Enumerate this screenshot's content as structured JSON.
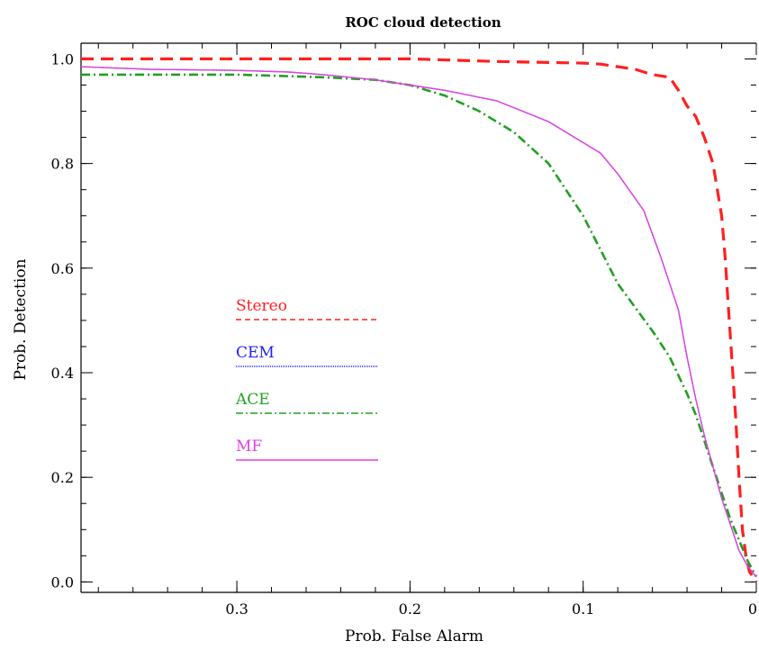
{
  "chart_data": {
    "type": "line",
    "title": "ROC cloud detection",
    "xlabel": "Prob. False Alarm",
    "ylabel": "Prob. Detection",
    "xlim": [
      0.39,
      0.0
    ],
    "ylim": [
      -0.02,
      1.03
    ],
    "x_reversed": true,
    "grid": false,
    "legend_position": "center-left",
    "x_ticks": [
      0.3,
      0.2,
      0.1,
      0.0
    ],
    "x_tick_labels": [
      "0.3",
      "0.2",
      "0.1",
      "0"
    ],
    "y_ticks": [
      0.0,
      0.2,
      0.4,
      0.6,
      0.8,
      1.0
    ],
    "y_tick_labels": [
      "0.0",
      "0.2",
      "0.4",
      "0.6",
      "0.8",
      "1.0"
    ],
    "series": [
      {
        "name": "Stereo",
        "color": "#ff2020",
        "style": "dashed",
        "x": [
          0.39,
          0.3,
          0.2,
          0.15,
          0.1,
          0.09,
          0.07,
          0.06,
          0.05,
          0.045,
          0.04,
          0.035,
          0.03,
          0.025,
          0.02,
          0.018,
          0.016,
          0.014,
          0.012,
          0.01,
          0.008,
          0.006,
          0.004,
          0.002,
          0.0
        ],
        "y": [
          1.0,
          1.0,
          1.0,
          0.995,
          0.992,
          0.99,
          0.98,
          0.97,
          0.965,
          0.94,
          0.91,
          0.89,
          0.85,
          0.8,
          0.7,
          0.62,
          0.52,
          0.42,
          0.32,
          0.2,
          0.1,
          0.05,
          0.02,
          0.01,
          0.0
        ]
      },
      {
        "name": "CEM",
        "color": "#2020ff",
        "style": "dotted",
        "x": [
          0.39,
          0.35,
          0.3,
          0.27,
          0.25,
          0.22,
          0.2,
          0.18,
          0.15,
          0.12,
          0.1,
          0.09,
          0.08,
          0.065,
          0.055,
          0.045,
          0.04,
          0.035,
          0.03,
          0.025,
          0.02,
          0.015,
          0.01,
          0.005,
          0.0
        ],
        "y": [
          0.985,
          0.98,
          0.978,
          0.975,
          0.97,
          0.96,
          0.95,
          0.94,
          0.92,
          0.88,
          0.84,
          0.82,
          0.78,
          0.71,
          0.62,
          0.52,
          0.43,
          0.35,
          0.28,
          0.22,
          0.16,
          0.11,
          0.06,
          0.03,
          0.01
        ]
      },
      {
        "name": "ACE",
        "color": "#20a020",
        "style": "dash-dot",
        "x": [
          0.39,
          0.35,
          0.3,
          0.25,
          0.22,
          0.2,
          0.18,
          0.16,
          0.14,
          0.12,
          0.1,
          0.08,
          0.06,
          0.05,
          0.04,
          0.035,
          0.03,
          0.025,
          0.02,
          0.015,
          0.01,
          0.005,
          0.0
        ],
        "y": [
          0.97,
          0.97,
          0.97,
          0.965,
          0.96,
          0.95,
          0.93,
          0.9,
          0.86,
          0.8,
          0.7,
          0.57,
          0.48,
          0.43,
          0.36,
          0.32,
          0.27,
          0.22,
          0.17,
          0.12,
          0.08,
          0.04,
          0.01
        ]
      },
      {
        "name": "MF",
        "color": "#e040e0",
        "style": "solid",
        "x": [
          0.39,
          0.35,
          0.3,
          0.27,
          0.25,
          0.22,
          0.2,
          0.18,
          0.15,
          0.12,
          0.1,
          0.09,
          0.08,
          0.065,
          0.055,
          0.045,
          0.04,
          0.035,
          0.03,
          0.025,
          0.02,
          0.015,
          0.01,
          0.005,
          0.0
        ],
        "y": [
          0.985,
          0.98,
          0.978,
          0.975,
          0.97,
          0.96,
          0.95,
          0.94,
          0.92,
          0.88,
          0.84,
          0.82,
          0.78,
          0.71,
          0.62,
          0.52,
          0.43,
          0.35,
          0.28,
          0.22,
          0.16,
          0.11,
          0.06,
          0.03,
          0.01
        ]
      }
    ]
  }
}
